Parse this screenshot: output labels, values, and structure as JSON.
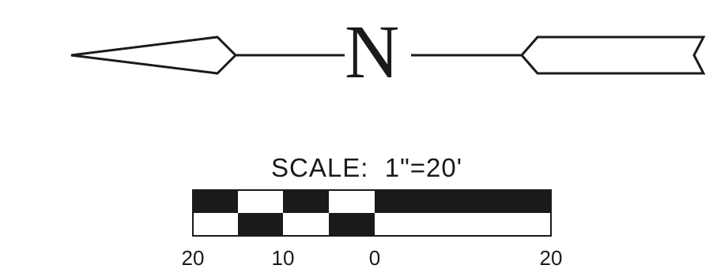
{
  "north_arrow": {
    "letter": "N"
  },
  "scale": {
    "title": "SCALE:  1\"=20'",
    "tick_labels": [
      "20",
      "10",
      "0",
      "20"
    ]
  },
  "colors": {
    "ink": "#1a1a1a",
    "paper": "#ffffff"
  }
}
